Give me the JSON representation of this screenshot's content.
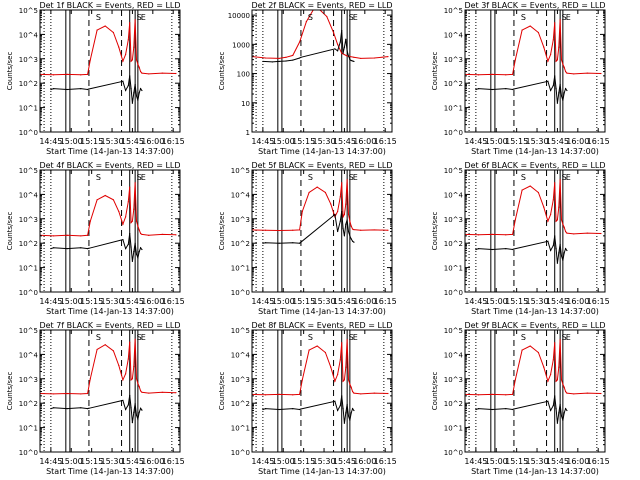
{
  "figure": {
    "background": "#ffffff",
    "ink_color": "#000000",
    "lld_color": "#e00000",
    "event_color": "#000000"
  },
  "x_axis": {
    "label": "Start Time (14-Jan-13 14:37:00)",
    "ticks": [
      "14:45",
      "15:00",
      "15:15",
      "15:30",
      "15:45",
      "16:00",
      "16:15"
    ],
    "tick_minutes": [
      8,
      23,
      38,
      53,
      68,
      83,
      98
    ],
    "range_minutes": [
      0,
      103
    ]
  },
  "y_axis_label": "Counts/sec",
  "markers": {
    "dotted_minutes": [
      3,
      8,
      97
    ],
    "solid_minutes": [
      19,
      22,
      66,
      70,
      72
    ],
    "dashed_minutes": [
      36,
      60
    ],
    "tag_labels": [
      "S",
      "S",
      "E"
    ],
    "tag_minutes": [
      43,
      73,
      76
    ]
  },
  "chart_data": [
    {
      "type": "line",
      "title": "Det 1f BLACK = Events, RED = LLD",
      "y_scale": "log",
      "ylim": [
        1,
        100000
      ],
      "y_ticks": [
        "10^0",
        "10^1",
        "10^2",
        "10^3",
        "10^4",
        "10^5"
      ],
      "series": [
        {
          "name": "LLD",
          "color": "#e00000",
          "x": [
            0,
            10,
            20,
            30,
            35,
            37,
            42,
            48,
            54,
            58,
            61,
            63,
            65,
            66,
            67,
            68,
            69,
            70,
            71,
            72,
            73,
            74,
            75,
            80,
            90,
            100
          ],
          "y": [
            230,
            220,
            230,
            220,
            230,
            900,
            15000,
            22000,
            12000,
            3000,
            800,
            1500,
            6000,
            30000,
            800,
            900,
            3000,
            40000,
            900,
            600,
            450,
            300,
            260,
            240,
            260,
            250
          ]
        },
        {
          "name": "Events",
          "color": "#000000",
          "x": [
            8,
            10,
            20,
            30,
            35,
            36,
            61,
            63,
            65,
            66,
            67,
            68,
            69,
            70,
            71,
            72,
            73,
            74,
            75
          ],
          "y": [
            55,
            60,
            55,
            60,
            55,
            58,
            120,
            50,
            80,
            200,
            60,
            15,
            40,
            90,
            30,
            20,
            40,
            60,
            50
          ]
        }
      ]
    },
    {
      "type": "line",
      "title": "Det 2f BLACK = Events, RED = LLD",
      "y_scale": "log",
      "ylim": [
        1,
        15000
      ],
      "y_ticks": [
        "1",
        "10",
        "100",
        "1000",
        "10000"
      ],
      "series": [
        {
          "name": "LLD",
          "color": "#e00000",
          "x": [
            0,
            10,
            20,
            25,
            30,
            35,
            40,
            45,
            50,
            55,
            60,
            63,
            66,
            70,
            75,
            80,
            90,
            100
          ],
          "y": [
            380,
            340,
            330,
            360,
            420,
            1200,
            6000,
            15000,
            15000,
            9000,
            2500,
            1000,
            500,
            400,
            360,
            330,
            340,
            380
          ]
        },
        {
          "name": "Events",
          "color": "#000000",
          "x": [
            8,
            15,
            20,
            25,
            30,
            35,
            36,
            61,
            63,
            65,
            66,
            67,
            68,
            69,
            70,
            71,
            72,
            73,
            74,
            75
          ],
          "y": [
            260,
            250,
            260,
            270,
            290,
            340,
            360,
            700,
            600,
            1200,
            3000,
            500,
            800,
            1500,
            600,
            400,
            300,
            280,
            270,
            260
          ]
        }
      ]
    },
    {
      "type": "line",
      "title": "Det 3f BLACK = Events, RED = LLD",
      "y_scale": "log",
      "ylim": [
        1,
        100000
      ],
      "y_ticks": [
        "10^0",
        "10^1",
        "10^2",
        "10^3",
        "10^4",
        "10^5"
      ],
      "series": [
        {
          "name": "LLD",
          "color": "#e00000",
          "x": [
            0,
            10,
            20,
            30,
            35,
            37,
            42,
            48,
            54,
            58,
            61,
            63,
            65,
            66,
            67,
            68,
            69,
            70,
            71,
            72,
            73,
            74,
            75,
            80,
            90,
            100
          ],
          "y": [
            230,
            220,
            230,
            220,
            230,
            900,
            15000,
            22000,
            12000,
            3000,
            800,
            1500,
            6000,
            30000,
            800,
            900,
            3000,
            40000,
            900,
            600,
            450,
            300,
            260,
            240,
            260,
            250
          ]
        },
        {
          "name": "Events",
          "color": "#000000",
          "x": [
            8,
            10,
            20,
            30,
            35,
            36,
            61,
            63,
            65,
            66,
            67,
            68,
            69,
            70,
            71,
            72,
            73,
            74,
            75
          ],
          "y": [
            55,
            60,
            55,
            60,
            55,
            58,
            120,
            50,
            80,
            200,
            60,
            15,
            40,
            90,
            30,
            20,
            40,
            60,
            50
          ]
        }
      ]
    },
    {
      "type": "line",
      "title": "Det 4f BLACK = Events, RED = LLD",
      "y_scale": "log",
      "ylim": [
        1,
        100000
      ],
      "y_ticks": [
        "10^0",
        "10^1",
        "10^2",
        "10^3",
        "10^4",
        "10^5"
      ],
      "series": [
        {
          "name": "LLD",
          "color": "#e00000",
          "x": [
            0,
            10,
            20,
            30,
            35,
            37,
            42,
            48,
            54,
            58,
            61,
            63,
            65,
            66,
            67,
            68,
            69,
            70,
            71,
            72,
            73,
            74,
            75,
            80,
            90,
            100
          ],
          "y": [
            210,
            200,
            210,
            200,
            210,
            800,
            6000,
            9000,
            6000,
            2000,
            600,
            1200,
            5000,
            20000,
            700,
            800,
            2500,
            30000,
            800,
            500,
            350,
            250,
            230,
            210,
            230,
            220
          ]
        },
        {
          "name": "Events",
          "color": "#000000",
          "x": [
            8,
            10,
            20,
            30,
            35,
            36,
            61,
            63,
            65,
            66,
            67,
            68,
            69,
            70,
            71,
            72,
            73,
            74,
            75
          ],
          "y": [
            60,
            65,
            60,
            65,
            60,
            62,
            140,
            60,
            90,
            250,
            70,
            18,
            45,
            100,
            35,
            25,
            45,
            65,
            55
          ]
        }
      ]
    },
    {
      "type": "line",
      "title": "Det 5f BLACK = Events, RED = LLD",
      "y_scale": "log",
      "ylim": [
        1,
        100000
      ],
      "y_ticks": [
        "10^0",
        "10^1",
        "10^2",
        "10^3",
        "10^4",
        "10^5"
      ],
      "series": [
        {
          "name": "LLD",
          "color": "#e00000",
          "x": [
            0,
            10,
            20,
            30,
            35,
            37,
            42,
            48,
            54,
            58,
            61,
            63,
            65,
            66,
            67,
            68,
            69,
            70,
            71,
            72,
            73,
            74,
            75,
            80,
            90,
            100
          ],
          "y": [
            350,
            340,
            330,
            340,
            350,
            2000,
            12000,
            20000,
            12000,
            4000,
            1200,
            2000,
            8000,
            30000,
            1200,
            1500,
            4000,
            40000,
            1500,
            800,
            500,
            380,
            360,
            340,
            350,
            340
          ]
        },
        {
          "name": "Events",
          "color": "#000000",
          "x": [
            8,
            10,
            20,
            30,
            35,
            36,
            61,
            63,
            65,
            66,
            67,
            68,
            69,
            70,
            71,
            72,
            73,
            74,
            75
          ],
          "y": [
            100,
            105,
            100,
            105,
            100,
            110,
            1500,
            300,
            800,
            2000,
            400,
            200,
            600,
            900,
            300,
            200,
            150,
            120,
            110
          ]
        }
      ]
    },
    {
      "type": "line",
      "title": "Det 6f BLACK = Events, RED = LLD",
      "y_scale": "log",
      "ylim": [
        1,
        100000
      ],
      "y_ticks": [
        "10^0",
        "10^1",
        "10^2",
        "10^3",
        "10^4",
        "10^5"
      ],
      "series": [
        {
          "name": "LLD",
          "color": "#e00000",
          "x": [
            0,
            10,
            20,
            30,
            35,
            37,
            42,
            48,
            54,
            58,
            61,
            63,
            65,
            66,
            67,
            68,
            69,
            70,
            71,
            72,
            73,
            74,
            75,
            80,
            90,
            100
          ],
          "y": [
            230,
            220,
            230,
            220,
            230,
            900,
            15000,
            22000,
            12000,
            3000,
            800,
            1500,
            6000,
            30000,
            800,
            900,
            3000,
            40000,
            900,
            600,
            450,
            300,
            260,
            240,
            260,
            250
          ]
        },
        {
          "name": "Events",
          "color": "#000000",
          "x": [
            8,
            10,
            20,
            30,
            35,
            36,
            61,
            63,
            65,
            66,
            67,
            68,
            69,
            70,
            71,
            72,
            73,
            74,
            75
          ],
          "y": [
            55,
            60,
            55,
            60,
            55,
            58,
            120,
            50,
            80,
            200,
            60,
            15,
            40,
            90,
            30,
            20,
            40,
            60,
            50
          ]
        }
      ]
    },
    {
      "type": "line",
      "title": "Det 7f BLACK = Events, RED = LLD",
      "y_scale": "log",
      "ylim": [
        1,
        100000
      ],
      "y_ticks": [
        "10^0",
        "10^1",
        "10^2",
        "10^3",
        "10^4",
        "10^5"
      ],
      "series": [
        {
          "name": "LLD",
          "color": "#e00000",
          "x": [
            0,
            10,
            20,
            30,
            35,
            37,
            42,
            48,
            54,
            58,
            61,
            63,
            65,
            66,
            67,
            68,
            69,
            70,
            71,
            72,
            73,
            74,
            75,
            80,
            90,
            100
          ],
          "y": [
            250,
            240,
            250,
            240,
            250,
            1000,
            16000,
            25000,
            14000,
            3500,
            900,
            1600,
            6500,
            32000,
            900,
            1000,
            3200,
            42000,
            1000,
            650,
            480,
            320,
            280,
            260,
            280,
            270
          ]
        },
        {
          "name": "Events",
          "color": "#000000",
          "x": [
            8,
            10,
            20,
            30,
            35,
            36,
            61,
            63,
            65,
            66,
            67,
            68,
            69,
            70,
            71,
            72,
            73,
            74,
            75
          ],
          "y": [
            60,
            65,
            60,
            65,
            60,
            62,
            130,
            55,
            85,
            210,
            65,
            16,
            42,
            95,
            32,
            22,
            42,
            62,
            52
          ]
        }
      ]
    },
    {
      "type": "line",
      "title": "Det 8f BLACK = Events, RED = LLD",
      "y_scale": "log",
      "ylim": [
        1,
        100000
      ],
      "y_ticks": [
        "10^0",
        "10^1",
        "10^2",
        "10^3",
        "10^4",
        "10^5"
      ],
      "series": [
        {
          "name": "LLD",
          "color": "#e00000",
          "x": [
            0,
            10,
            20,
            30,
            35,
            37,
            42,
            48,
            54,
            58,
            61,
            63,
            65,
            66,
            67,
            68,
            69,
            70,
            71,
            72,
            73,
            74,
            75,
            80,
            90,
            100
          ],
          "y": [
            230,
            220,
            230,
            220,
            230,
            900,
            15000,
            22000,
            12000,
            3000,
            800,
            1500,
            6000,
            30000,
            800,
            900,
            3000,
            40000,
            900,
            600,
            450,
            300,
            260,
            240,
            260,
            250
          ]
        },
        {
          "name": "Events",
          "color": "#000000",
          "x": [
            8,
            10,
            20,
            30,
            35,
            36,
            61,
            63,
            65,
            66,
            67,
            68,
            69,
            70,
            71,
            72,
            73,
            74,
            75
          ],
          "y": [
            55,
            60,
            55,
            60,
            55,
            58,
            120,
            50,
            80,
            200,
            60,
            15,
            40,
            90,
            30,
            20,
            40,
            60,
            50
          ]
        }
      ]
    },
    {
      "type": "line",
      "title": "Det 9f BLACK = Events, RED = LLD",
      "y_scale": "log",
      "ylim": [
        1,
        100000
      ],
      "y_ticks": [
        "10^0",
        "10^1",
        "10^2",
        "10^3",
        "10^4",
        "10^5"
      ],
      "series": [
        {
          "name": "LLD",
          "color": "#e00000",
          "x": [
            0,
            10,
            20,
            30,
            35,
            37,
            42,
            48,
            54,
            58,
            61,
            63,
            65,
            66,
            67,
            68,
            69,
            70,
            71,
            72,
            73,
            74,
            75,
            80,
            90,
            100
          ],
          "y": [
            230,
            220,
            230,
            220,
            230,
            900,
            15000,
            22000,
            12000,
            3000,
            800,
            1500,
            6000,
            30000,
            800,
            900,
            3000,
            40000,
            900,
            600,
            450,
            300,
            260,
            240,
            260,
            250
          ]
        },
        {
          "name": "Events",
          "color": "#000000",
          "x": [
            8,
            10,
            20,
            30,
            35,
            36,
            61,
            63,
            65,
            66,
            67,
            68,
            69,
            70,
            71,
            72,
            73,
            74,
            75
          ],
          "y": [
            55,
            60,
            55,
            60,
            55,
            58,
            120,
            50,
            80,
            200,
            60,
            15,
            40,
            90,
            30,
            20,
            40,
            60,
            50
          ]
        }
      ]
    }
  ]
}
